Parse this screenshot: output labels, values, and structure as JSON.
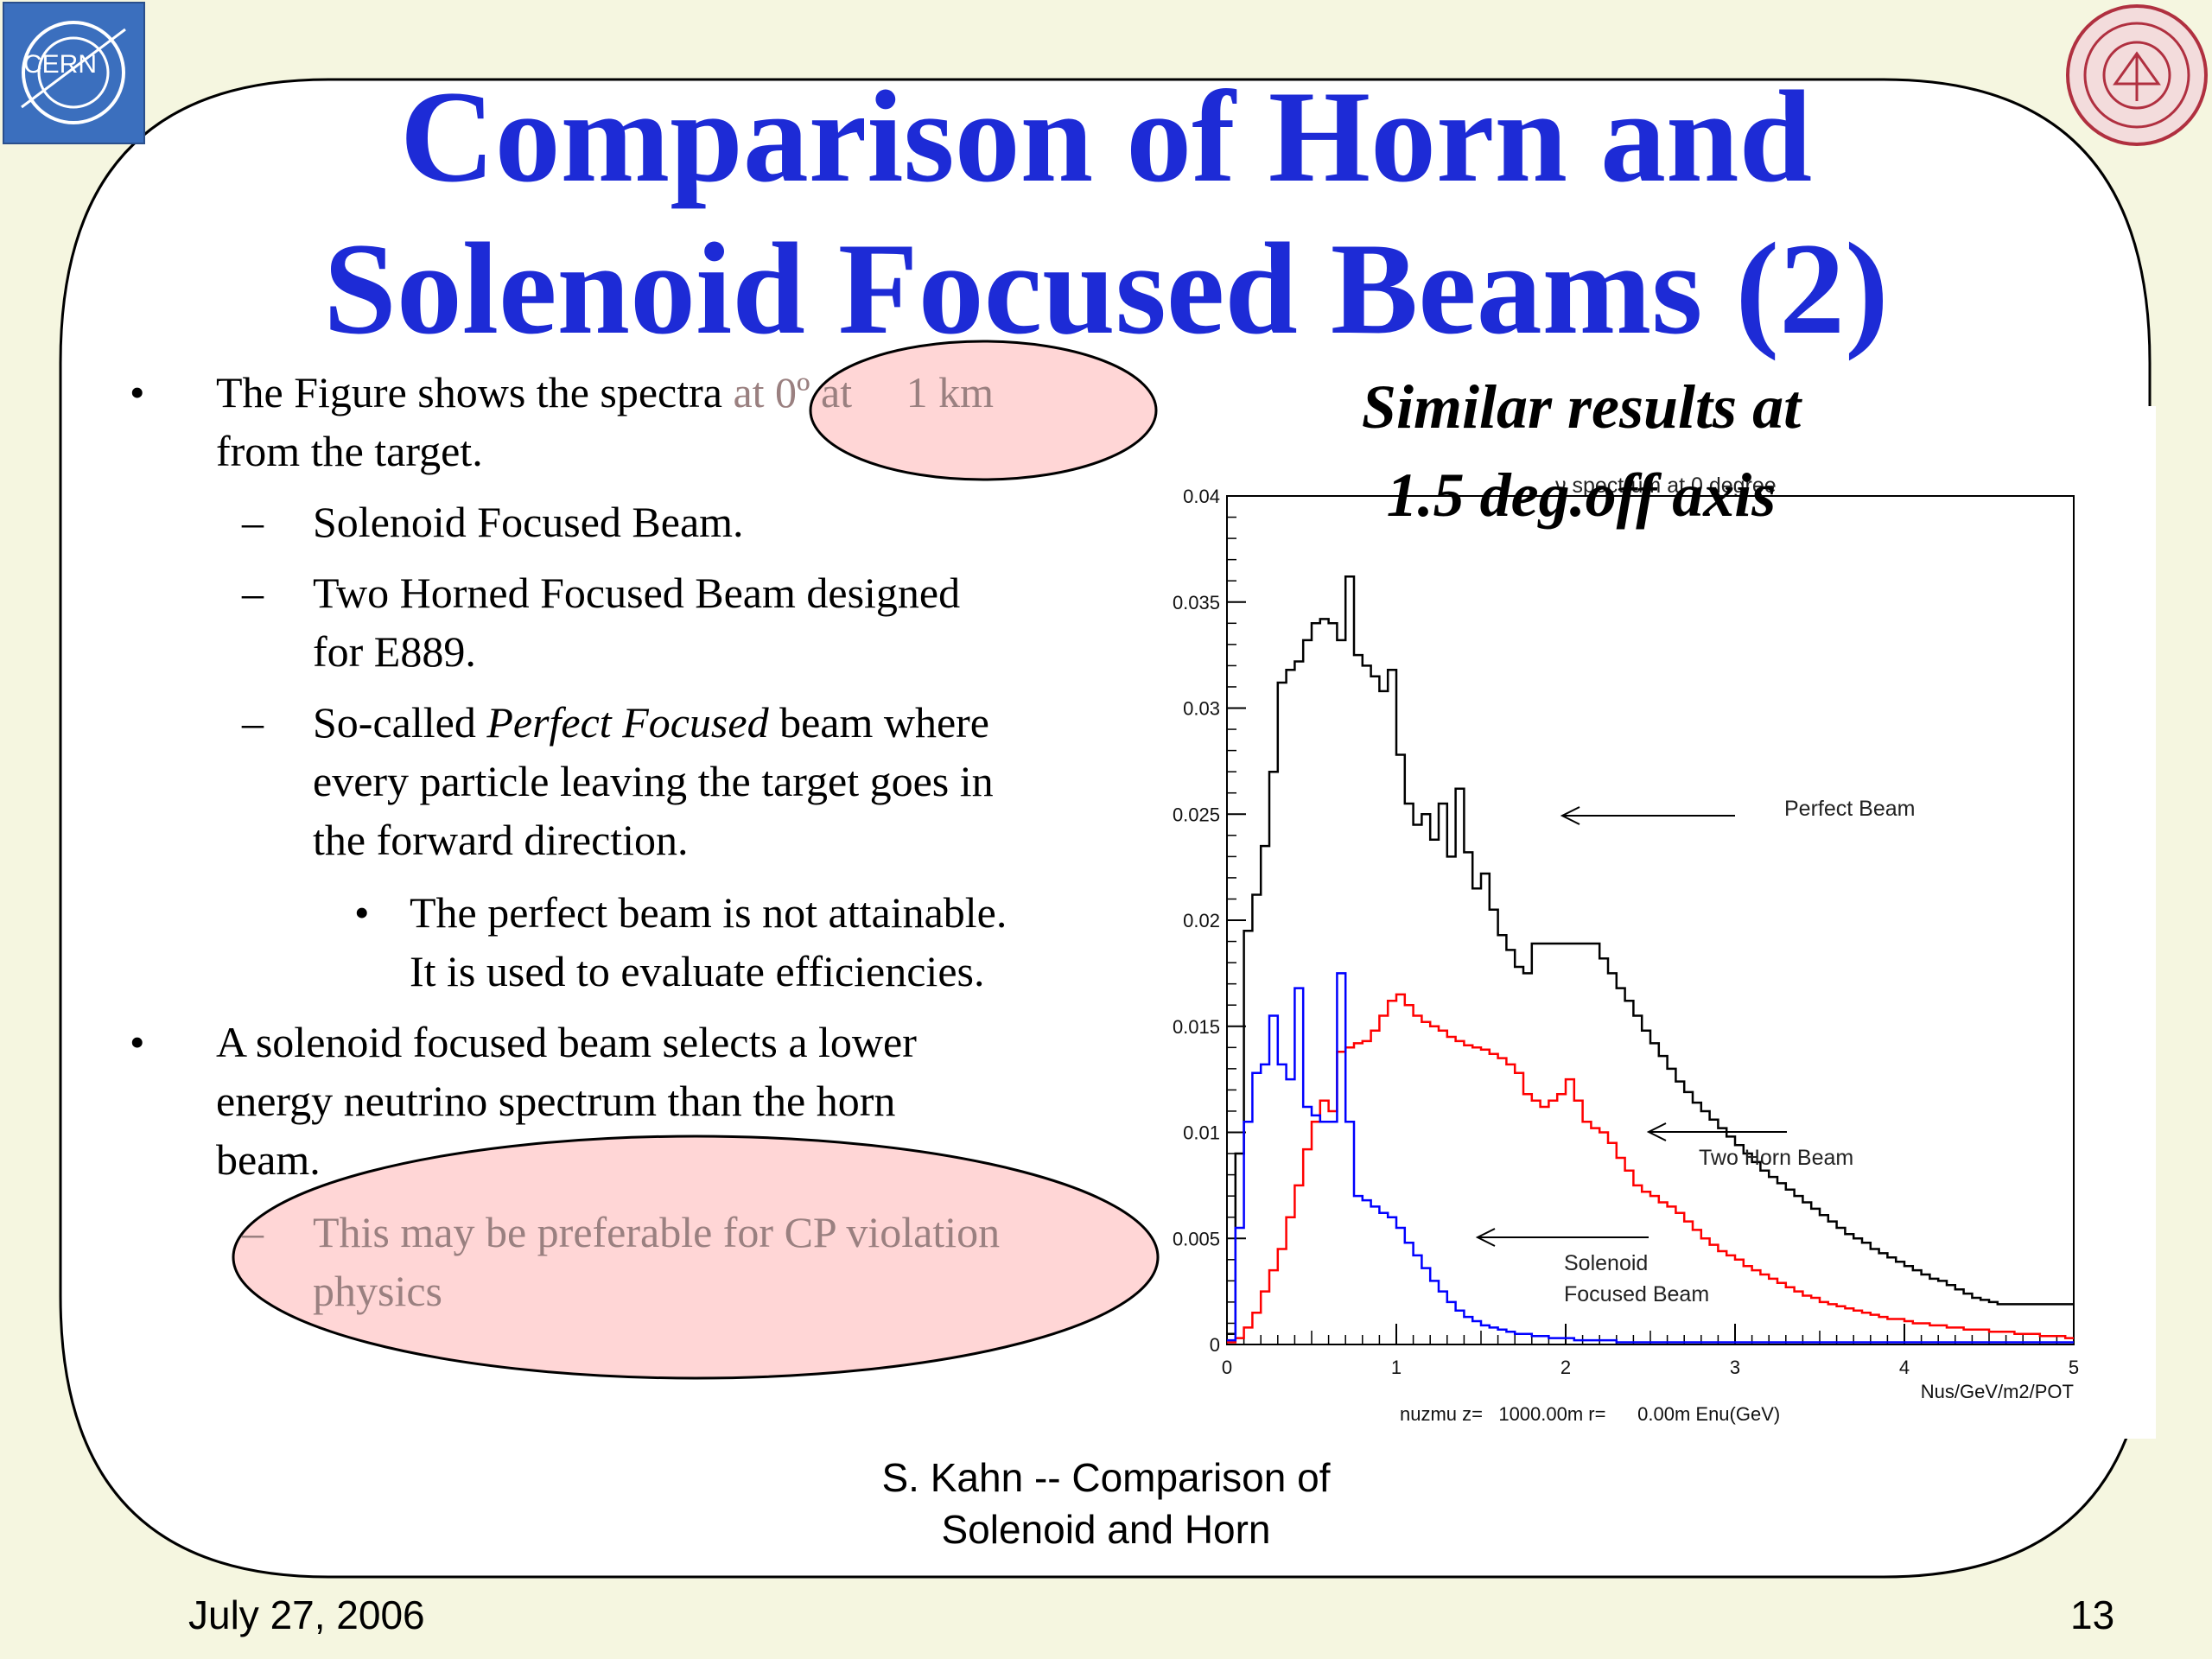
{
  "slide": {
    "title_line1": "Comparison of Horn and",
    "title_line2": "Solenoid Focused Beams (2)",
    "subtitle_line1": "Similar results at",
    "subtitle_line2": "1.5 deg.off axis",
    "logos": {
      "left": "CERN",
      "right_icon": "university-seal-icon"
    },
    "colors": {
      "title": "#1d2bd6",
      "background": "#f5f6e0",
      "highlight": "#ffd6d6"
    },
    "bullets": {
      "b1_text": "The Figure shows the spectra ",
      "b1_highlight": "at 0º at     1 km",
      "b1_line2": "from the target.",
      "s1": "Solenoid Focused Beam.",
      "s2_line1": "Two Horned Focused Beam designed",
      "s2_line2": "for E889.",
      "s3_pre": "So-called ",
      "s3_em": "Perfect Focused",
      "s3_post": " beam where",
      "s3_line2": "every particle leaving the target goes in",
      "s3_line3": "the forward direction.",
      "ss1_line1": "The perfect beam is not attainable.",
      "ss1_line2": "It is used to evaluate efficiencies.",
      "b2_line1": "A solenoid focused beam selects a lower",
      "b2_line2": "energy neutrino spectrum than the horn",
      "b2_line3": "beam.",
      "s4_line1": "This may be preferable for CP violation",
      "s4_line2": "physics"
    },
    "footer": {
      "center_line1": "S. Kahn -- Comparison of",
      "center_line2": "Solenoid and Horn",
      "date": "July 27, 2006",
      "page": "13"
    }
  },
  "chart_data": {
    "type": "line",
    "title": "ν spectrum at 0 degree",
    "xlabel": "nuzmu z=   1000.00m r=      0.00m Enu(GeV)",
    "ylabel": "Nus/GeV/m2/POT",
    "xlim": [
      0,
      5
    ],
    "ylim": [
      0,
      0.04
    ],
    "x_ticks": [
      "0",
      "1",
      "2",
      "3",
      "4",
      "5"
    ],
    "y_ticks": [
      "0",
      "0.005",
      "0.01",
      "0.015",
      "0.02",
      "0.025",
      "0.03",
      "0.035",
      "0.04"
    ],
    "grid": false,
    "annotations": [
      {
        "text": "Perfect Beam",
        "series": "Perfect Beam"
      },
      {
        "text": "Two Horn Beam",
        "series": "Two Horn Beam"
      },
      {
        "text": "Solenoid",
        "series": "Solenoid Focused Beam"
      },
      {
        "text": "Focused Beam",
        "series": "Solenoid Focused Beam"
      }
    ],
    "bin_width": 0.05,
    "series": [
      {
        "name": "Perfect Beam",
        "color": "#000000",
        "values": [
          0.0005,
          0.009,
          0.0195,
          0.0212,
          0.0235,
          0.027,
          0.0312,
          0.0318,
          0.0322,
          0.0332,
          0.034,
          0.0342,
          0.034,
          0.0332,
          0.0362,
          0.0325,
          0.032,
          0.0315,
          0.0308,
          0.0318,
          0.0278,
          0.0255,
          0.0245,
          0.025,
          0.0238,
          0.0255,
          0.023,
          0.0262,
          0.0232,
          0.0215,
          0.0222,
          0.0205,
          0.0193,
          0.0186,
          0.0178,
          0.0175,
          0.0189,
          0.0189,
          0.0189,
          0.0189,
          0.0189,
          0.0189,
          0.0189,
          0.0189,
          0.0182,
          0.0175,
          0.0168,
          0.0162,
          0.0155,
          0.0148,
          0.0142,
          0.0136,
          0.013,
          0.0124,
          0.0119,
          0.0114,
          0.011,
          0.0106,
          0.0102,
          0.0098,
          0.0094,
          0.009,
          0.0086,
          0.0082,
          0.0079,
          0.0076,
          0.0073,
          0.007,
          0.0067,
          0.0064,
          0.0061,
          0.0058,
          0.0055,
          0.0052,
          0.005,
          0.0048,
          0.0045,
          0.0043,
          0.0041,
          0.0039,
          0.0037,
          0.0035,
          0.0033,
          0.0031,
          0.003,
          0.0028,
          0.0026,
          0.0024,
          0.0022,
          0.0021,
          0.002,
          0.0019,
          0.0019,
          0.0019,
          0.0019,
          0.0019,
          0.0019,
          0.0019,
          0.0019,
          0.0019
        ]
      },
      {
        "name": "Two Horn Beam",
        "color": "#ff0000",
        "values": [
          0.0001,
          0.0003,
          0.0008,
          0.0015,
          0.0025,
          0.0035,
          0.0045,
          0.006,
          0.0075,
          0.0092,
          0.0105,
          0.0115,
          0.011,
          0.0138,
          0.014,
          0.0142,
          0.0143,
          0.0148,
          0.0155,
          0.0162,
          0.0165,
          0.016,
          0.0155,
          0.0152,
          0.015,
          0.0148,
          0.0145,
          0.0143,
          0.0141,
          0.014,
          0.0139,
          0.0137,
          0.0135,
          0.0132,
          0.0128,
          0.0118,
          0.0115,
          0.0112,
          0.0115,
          0.0118,
          0.0125,
          0.0115,
          0.0105,
          0.0102,
          0.01,
          0.0095,
          0.0088,
          0.0082,
          0.0075,
          0.0072,
          0.007,
          0.0067,
          0.0065,
          0.0062,
          0.0058,
          0.0054,
          0.005,
          0.0047,
          0.0044,
          0.0042,
          0.004,
          0.0037,
          0.0035,
          0.0033,
          0.0031,
          0.0029,
          0.0027,
          0.0025,
          0.0023,
          0.0022,
          0.002,
          0.0019,
          0.0018,
          0.0017,
          0.0016,
          0.0015,
          0.0014,
          0.0013,
          0.0012,
          0.0012,
          0.0011,
          0.001,
          0.001,
          0.0009,
          0.0009,
          0.0008,
          0.0008,
          0.0007,
          0.0007,
          0.0007,
          0.0006,
          0.0006,
          0.0006,
          0.0005,
          0.0005,
          0.0005,
          0.0004,
          0.0004,
          0.0004,
          0.0003
        ]
      },
      {
        "name": "Solenoid Focused Beam",
        "color": "#0000ff",
        "values": [
          0.0002,
          0.0055,
          0.0105,
          0.0128,
          0.0132,
          0.0155,
          0.0132,
          0.0125,
          0.0168,
          0.0112,
          0.0108,
          0.0105,
          0.0105,
          0.0175,
          0.0105,
          0.007,
          0.0068,
          0.0065,
          0.0062,
          0.006,
          0.0055,
          0.0048,
          0.0042,
          0.0036,
          0.003,
          0.0025,
          0.002,
          0.0016,
          0.0013,
          0.0011,
          0.0009,
          0.0008,
          0.0007,
          0.0006,
          0.0005,
          0.0005,
          0.0004,
          0.0004,
          0.0003,
          0.0003,
          0.0003,
          0.0002,
          0.0002,
          0.0002,
          0.0002,
          0.0002,
          0.0001,
          0.0001,
          0.0001,
          0.0001,
          0.0001,
          0.0001,
          0.0001,
          0.0001,
          0.0001,
          0.0001,
          0.0001,
          0.0001,
          0.0001,
          0.0001,
          0.0001,
          0.0001,
          0.0001,
          0.0001,
          0.0001,
          0.0001,
          0.0001,
          0.0001,
          0.0001,
          0.0001,
          0.0001,
          0.0001,
          0.0001,
          0.0001,
          0.0001,
          0.0001,
          0.0001,
          0.0001,
          0.0001,
          0.0001,
          0.0001,
          0.0001,
          0.0001,
          0.0001,
          0.0001,
          0.0001,
          0.0001,
          0.0001,
          0.0001,
          0.0001,
          0.0001,
          0.0001,
          0.0001,
          0.0001,
          0.0001,
          0.0001,
          0.0001,
          0.0001,
          0.0001,
          0.0001
        ]
      }
    ]
  }
}
